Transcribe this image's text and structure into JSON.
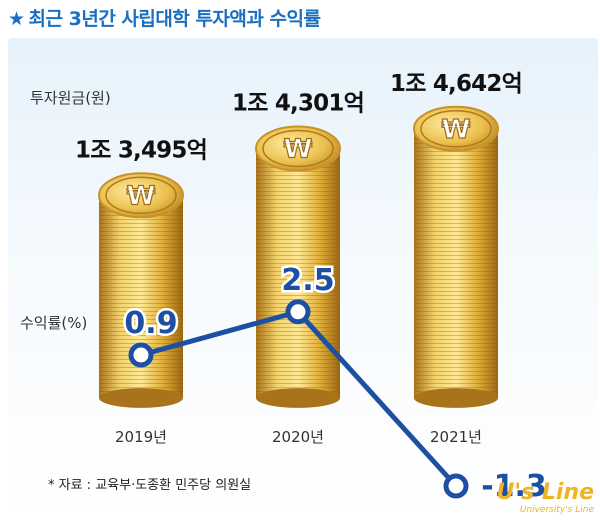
{
  "title": "최근 3년간 사립대학 투자액과 수익률",
  "title_marker": "★",
  "investment_label": "투자원금(원)",
  "rate_label": "수익률(%)",
  "source": "* 자료 : 교육부·도종환 민주당 의원실",
  "watermark": {
    "main": "U's Line",
    "sub": "University's Line"
  },
  "colors": {
    "title": "#1a6fc1",
    "line": "#1d4fa3",
    "coin": "#e0b13a"
  },
  "chart_data": {
    "type": "line",
    "categories": [
      "2019년",
      "2020년",
      "2021년"
    ],
    "series": [
      {
        "values": [
          0.9,
          2.5,
          -1.3
        ],
        "labels": [
          "0.9",
          "2.5",
          "-1.3"
        ]
      }
    ],
    "bars": {
      "values": [
        1.3495,
        1.4301,
        1.4642
      ],
      "labels": [
        "1조 3,495억",
        "1조 4,301억",
        "1조 4,642억"
      ]
    }
  }
}
